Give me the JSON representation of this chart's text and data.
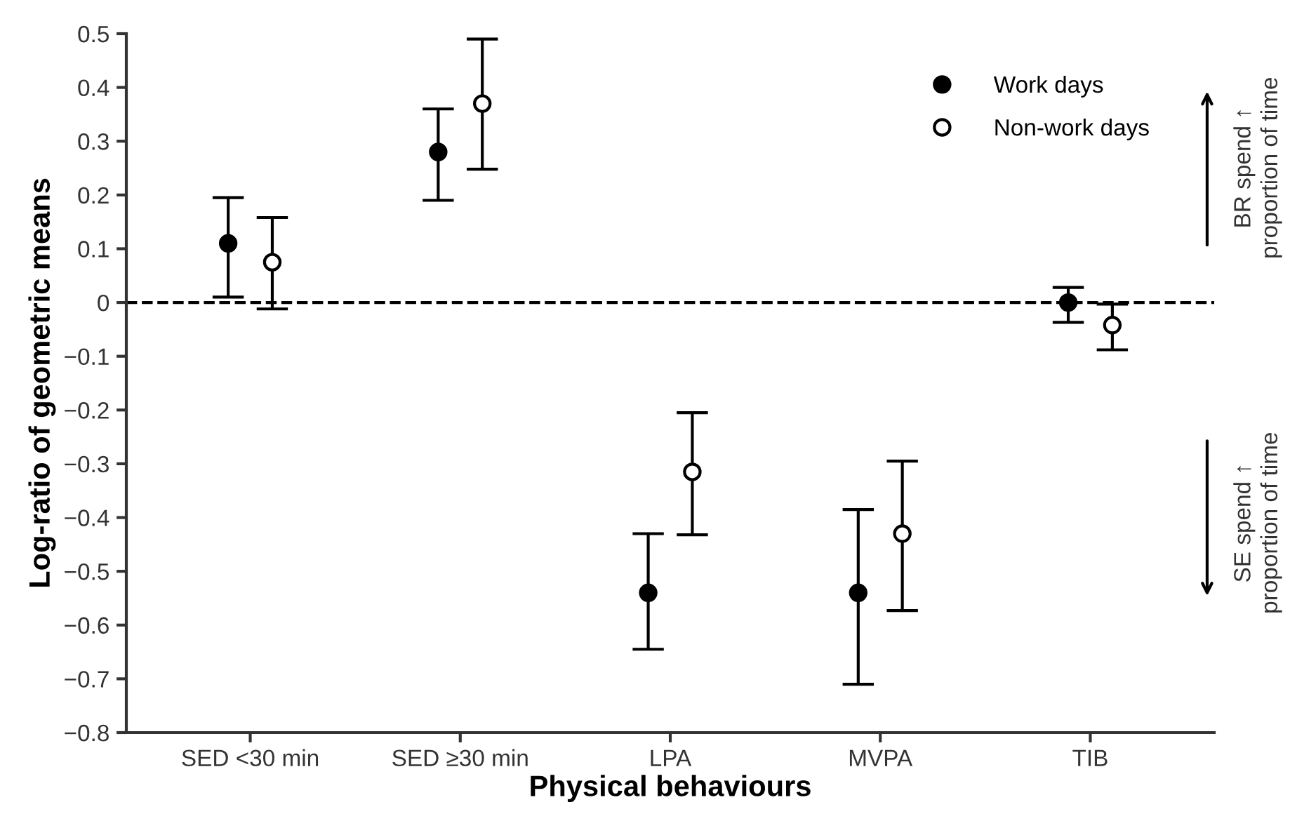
{
  "chart_data": {
    "type": "scatter",
    "xlabel": "Physical behaviours",
    "ylabel": "Log-ratio of geometric means",
    "categories": [
      "SED <30 min",
      "SED ≥30 min",
      "LPA",
      "MVPA",
      "TIB"
    ],
    "series": [
      {
        "name": "Work days",
        "color": "#000000",
        "values": [
          0.11,
          0.28,
          -0.54,
          -0.54,
          0.0
        ],
        "errors": [
          [
            0.01,
            0.195
          ],
          [
            0.19,
            0.36
          ],
          [
            -0.645,
            -0.43
          ],
          [
            -0.71,
            -0.385
          ],
          [
            -0.037,
            0.028
          ]
        ]
      },
      {
        "name": "Non-work days",
        "color": "#ffffff",
        "values": [
          0.075,
          0.37,
          -0.315,
          -0.43,
          -0.042
        ],
        "errors": [
          [
            -0.012,
            0.158
          ],
          [
            0.248,
            0.49
          ],
          [
            -0.432,
            -0.205
          ],
          [
            -0.573,
            -0.295
          ],
          [
            -0.088,
            -0.003
          ]
        ]
      }
    ],
    "ylim": [
      -0.8,
      0.5
    ],
    "yticks": [
      {
        "value": -0.8,
        "label": "−0.8"
      },
      {
        "value": -0.7,
        "label": "−0.7"
      },
      {
        "value": -0.6,
        "label": "−0.6"
      },
      {
        "value": -0.5,
        "label": "−0.5"
      },
      {
        "value": -0.4,
        "label": "−0.4"
      },
      {
        "value": -0.3,
        "label": "−0.3"
      },
      {
        "value": -0.2,
        "label": "−0.2"
      },
      {
        "value": -0.1,
        "label": "−0.1"
      },
      0,
      0.1,
      0.2,
      0.3,
      0.4,
      0.5
    ],
    "ref_lines": [
      {
        "axis": "y",
        "value": 0,
        "line_style": "dashed",
        "color": "#000000"
      }
    ],
    "annotations": [
      "BR spend ↑\nproportion of time",
      "SE spend ↑\nproportion of time"
    ],
    "marker": "circle",
    "grid": false,
    "legend": "top right"
  }
}
